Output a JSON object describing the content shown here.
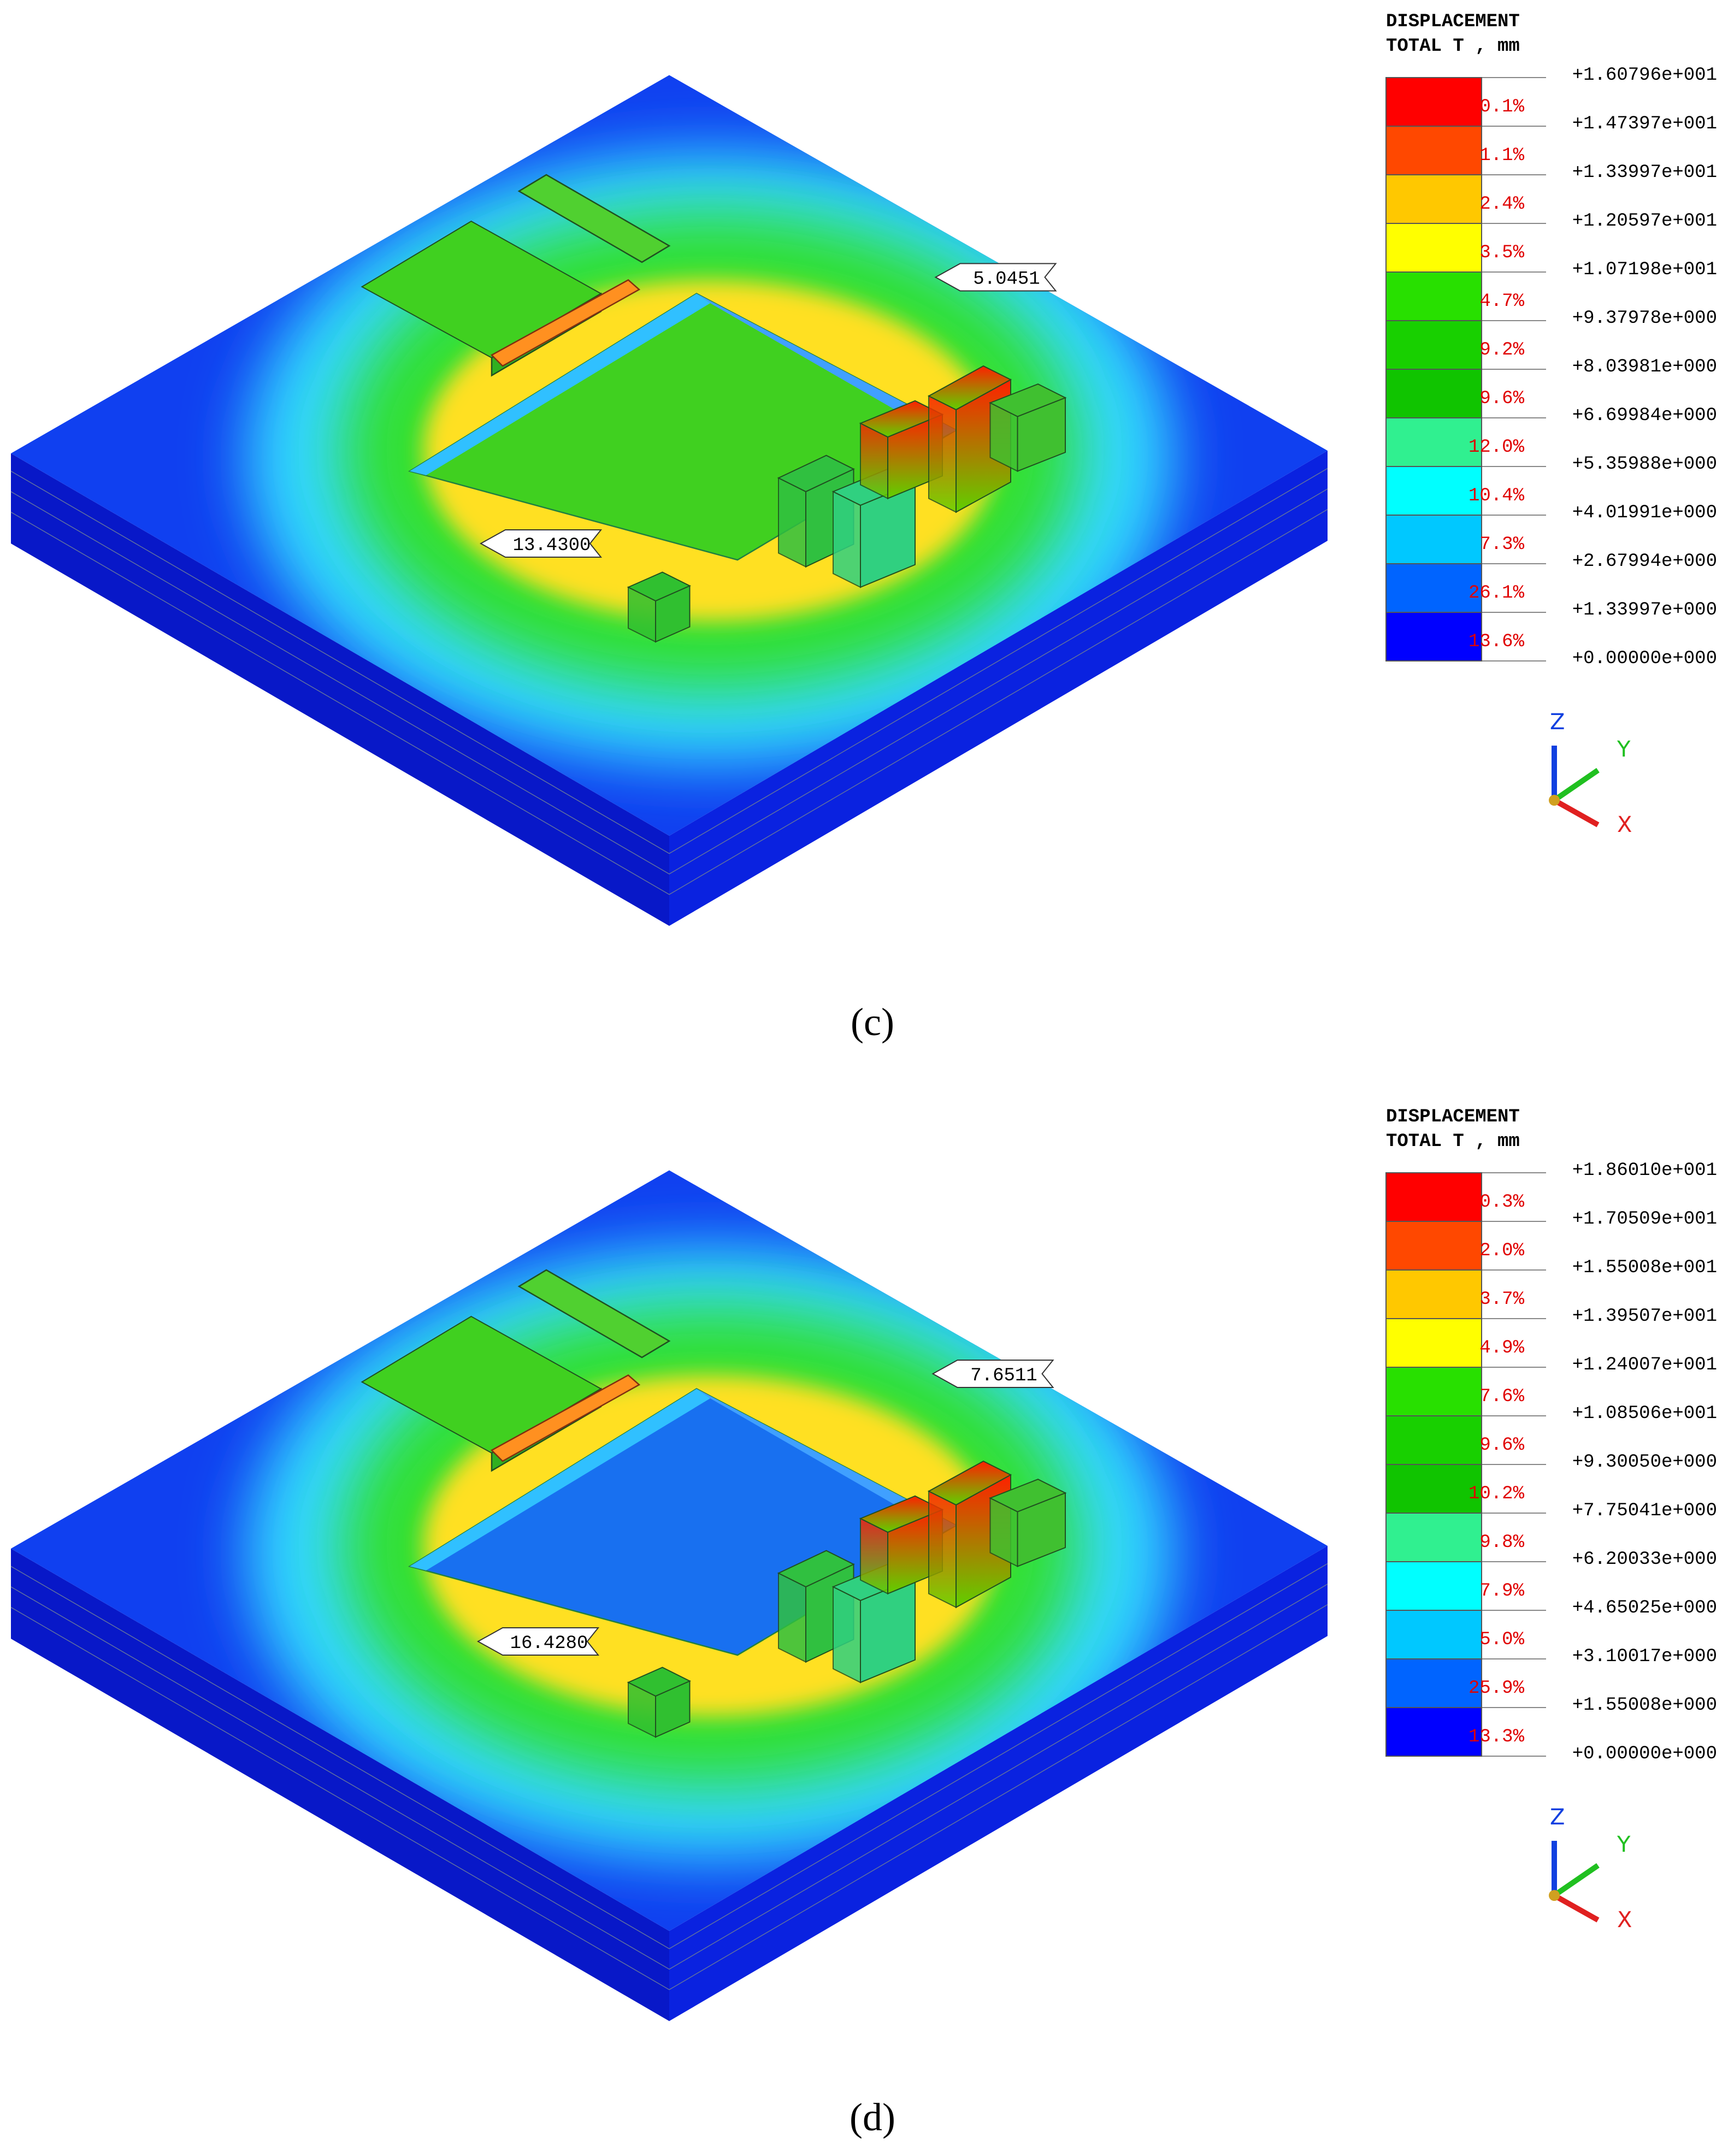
{
  "panels": [
    {
      "legend": {
        "title": [
          "DISPLACEMENT",
          "TOTAL T , mm"
        ],
        "levels": [
          "+1.60796e+001",
          "+1.47397e+001",
          "+1.33997e+001",
          "+1.20597e+001",
          "+1.07198e+001",
          "+9.37978e+000",
          "+8.03981e+000",
          "+6.69984e+000",
          "+5.35988e+000",
          "+4.01991e+000",
          "+2.67994e+000",
          "+1.33997e+000",
          "+0.00000e+000"
        ],
        "percents": [
          "0.1%",
          "1.1%",
          "2.4%",
          "3.5%",
          "4.7%",
          "9.2%",
          "9.6%",
          "12.0%",
          "10.4%",
          "7.3%",
          "26.1%",
          "13.6%"
        ],
        "colors": [
          "#ff0000",
          "#ff4800",
          "#ffc800",
          "#ffff00",
          "#28e000",
          "#18d000",
          "#10c400",
          "#30f090",
          "#00ffff",
          "#00c8ff",
          "#0064ff",
          "#0000ff"
        ]
      },
      "annotations": [
        "5.0451",
        "13.4300"
      ],
      "axes": [
        "Z",
        "Y",
        "X"
      ],
      "caption": "(c)"
    },
    {
      "legend": {
        "title": [
          "DISPLACEMENT",
          "TOTAL T , mm"
        ],
        "levels": [
          "+1.86010e+001",
          "+1.70509e+001",
          "+1.55008e+001",
          "+1.39507e+001",
          "+1.24007e+001",
          "+1.08506e+001",
          "+9.30050e+000",
          "+7.75041e+000",
          "+6.20033e+000",
          "+4.65025e+000",
          "+3.10017e+000",
          "+1.55008e+000",
          "+0.00000e+000"
        ],
        "percents": [
          "0.3%",
          "2.0%",
          "3.7%",
          "4.9%",
          "7.6%",
          "9.6%",
          "10.2%",
          "9.8%",
          "7.9%",
          "5.0%",
          "25.9%",
          "13.3%"
        ],
        "colors": [
          "#ff0000",
          "#ff4800",
          "#ffc800",
          "#ffff00",
          "#28e000",
          "#18d000",
          "#10c400",
          "#30f090",
          "#00ffff",
          "#00c8ff",
          "#0064ff",
          "#0000ff"
        ]
      },
      "annotations": [
        "7.6511",
        "16.4280"
      ],
      "axes": [
        "Z",
        "Y",
        "X"
      ],
      "caption": "(d)"
    }
  ]
}
